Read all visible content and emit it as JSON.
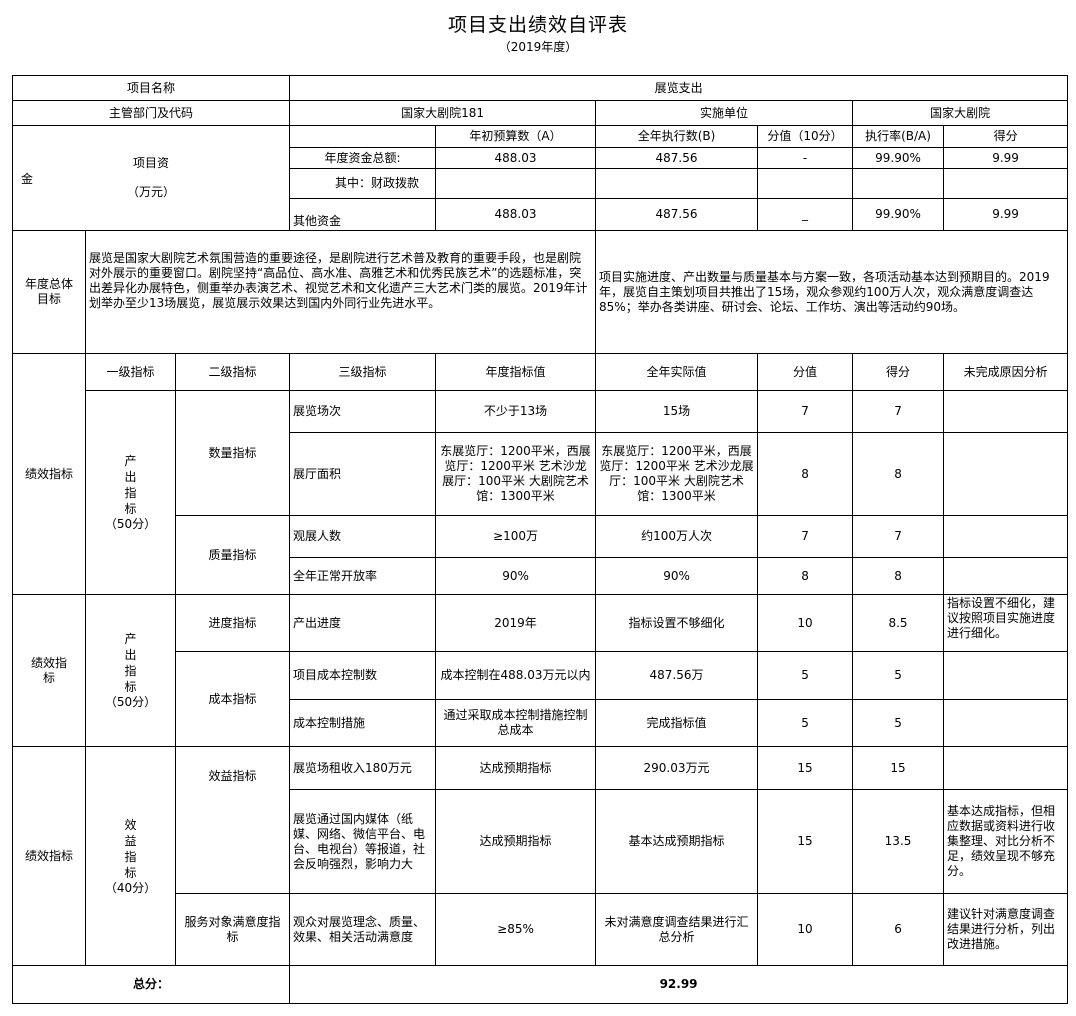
{
  "title": "项目支出绩效自评表",
  "subtitle": "（2019年度）",
  "header": {
    "project_name_label": "项目名称",
    "project_name": "展览支出",
    "dept_label": "主管部门及代码",
    "dept_value": "国家大剧院181",
    "impl_label": "实施单位",
    "impl_value": "国家大剧院"
  },
  "funds": {
    "left_char": "金",
    "label": "项目资",
    "unit": "（万元）",
    "columns": [
      "年初预算数（A）",
      "全年执行数(B)",
      "分值（10分）",
      "执行率(B/A)",
      "得分"
    ],
    "rows": [
      {
        "label": "年度资金总额:",
        "a": "488.03",
        "b": "487.56",
        "score_value": "-",
        "rate": "99.90%",
        "score": "9.99"
      },
      {
        "label": "其中：财政拨款",
        "a": "",
        "b": "",
        "score_value": "",
        "rate": "",
        "score": ""
      },
      {
        "label": "其他资金",
        "a": "488.03",
        "b": "487.56",
        "score_value": "_",
        "rate": "99.90%",
        "score": "9.99"
      }
    ]
  },
  "goals": {
    "label": "年度总体目标",
    "target": "展览是国家大剧院艺术氛围营造的重要途径，是剧院进行艺术普及教育的重要手段，也是剧院对外展示的重要窗口。剧院坚持“高品位、高水准、高雅艺术和优秀民族艺术”的选题标准，突出差异化办展特色，侧重举办表演艺术、视觉艺术和文化遗产三大艺术门类的展览。2019年计划举办至少13场展览，展览展示效果达到国内外同行业先进水平。",
    "actual": "项目实施进度、产出数量与质量基本与方案一致，各项活动基本达到预期目的。2019年，展览自主策划项目共推出了15场，观众参观约100万人次，观众满意度调查达85%；举办各类讲座、研讨会、论坛、工作坊、演出等活动约90场。"
  },
  "indicators": {
    "headers": [
      "一级指标",
      "二级指标",
      "三级指标",
      "年度指标值",
      "全年实际值",
      "分值",
      "得分",
      "未完成原因分析"
    ],
    "sections": [
      {
        "label": "绩效指标",
        "level1": "产出指标",
        "level1_score": "（50分）",
        "groups": [
          {
            "level2": "数量指标"
          },
          {
            "level2": "质量指标"
          }
        ],
        "rows": [
          {
            "level3": "展览场次",
            "target": "不少于13场",
            "actual": "15场",
            "weight": "7",
            "score": "7",
            "reason": ""
          },
          {
            "level3": "展厅面积",
            "target": "东展览厅：1200平米，西展览厅：1200平米 艺术沙龙展厅：100平米 大剧院艺术馆：1300平米",
            "actual": "东展览厅：1200平米，西展览厅：1200平米 艺术沙龙展厅：100平米 大剧院艺术馆：1300平米",
            "weight": "8",
            "score": "8",
            "reason": ""
          },
          {
            "level3": "观展人数",
            "target": "≥100万",
            "actual": "约100万人次",
            "weight": "7",
            "score": "7",
            "reason": ""
          },
          {
            "level3": "全年正常开放率",
            "target": "90%",
            "actual": "90%",
            "weight": "8",
            "score": "8",
            "reason": ""
          }
        ]
      },
      {
        "label": "绩效指标",
        "level1": "产出指标",
        "level1_score": "（50分）",
        "groups": [
          {
            "level2": "进度指标"
          },
          {
            "level2": "成本指标"
          }
        ],
        "rows": [
          {
            "level3": "产出进度",
            "target": "2019年",
            "actual": "指标设置不够细化",
            "weight": "10",
            "score": "8.5",
            "reason": "指标设置不细化，建议按照项目实施进度进行细化。"
          },
          {
            "level3": "项目成本控制数",
            "target": "成本控制在488.03万元以内",
            "actual": "487.56万",
            "weight": "5",
            "score": "5",
            "reason": ""
          },
          {
            "level3": "成本控制措施",
            "target": "通过采取成本控制措施控制总成本",
            "actual": "完成指标值",
            "weight": "5",
            "score": "5",
            "reason": ""
          }
        ]
      },
      {
        "label": "绩效指标",
        "level1": "效益指标",
        "level1_score": "（40分）",
        "groups": [
          {
            "level2": "效益指标"
          },
          {
            "level2": "服务对象满意度指标"
          }
        ],
        "rows": [
          {
            "level3": "展览场租收入180万元",
            "target": "达成预期指标",
            "actual": "290.03万元",
            "weight": "15",
            "score": "15",
            "reason": ""
          },
          {
            "level3": "展览通过国内媒体（纸媒、网络、微信平台、电台、电视台）等报道，社会反响强烈，影响力大",
            "target": "达成预期指标",
            "actual": "基本达成预期指标",
            "weight": "15",
            "score": "13.5",
            "reason": "基本达成指标，但相应数据或资料进行收集整理、对比分析不足，绩效呈现不够充分。"
          },
          {
            "level3": "观众对展览理念、质量、效果、相关活动满意度",
            "target": "≥85%",
            "actual": "未对满意度调查结果进行汇总分析",
            "weight": "10",
            "score": "6",
            "reason": "建议针对满意度调查结果进行分析，列出改进措施。"
          }
        ]
      }
    ]
  },
  "total": {
    "label": "总分：",
    "value": "92.99"
  }
}
